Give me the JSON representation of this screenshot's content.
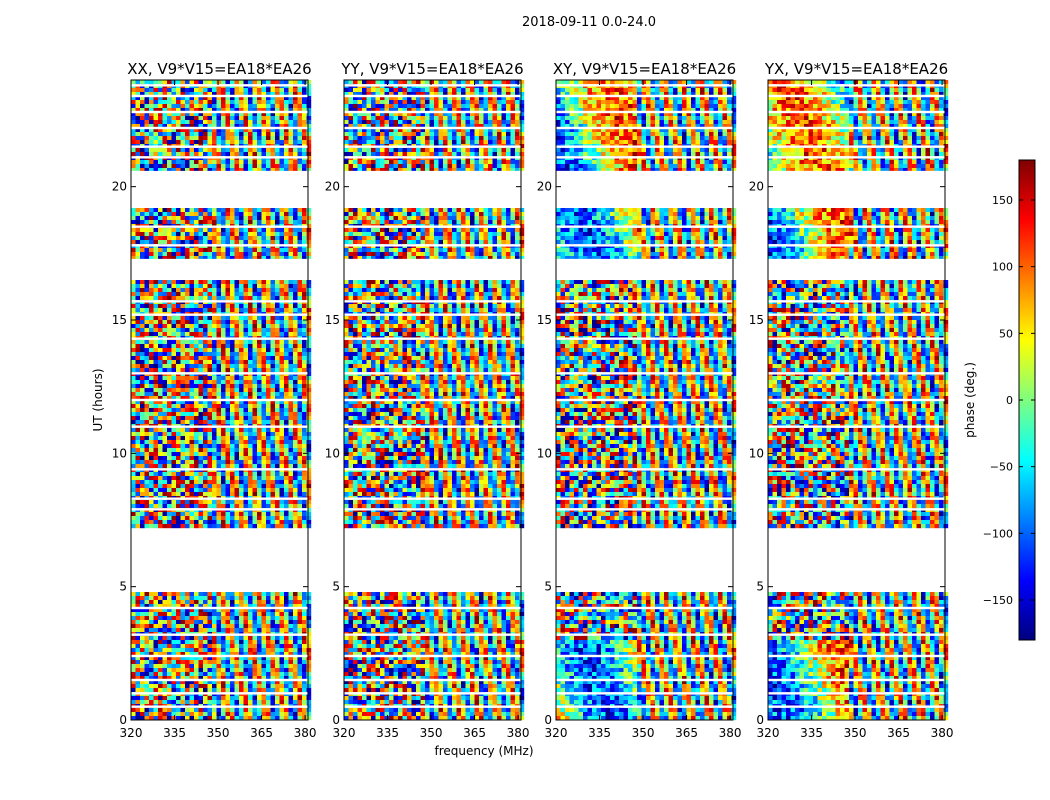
{
  "figure": {
    "suptitle": "2018-09-11 0.0-24.0",
    "xlabel": "frequency (MHz)",
    "ylabel": "UT (hours)"
  },
  "colorbar": {
    "label": "phase (deg.)",
    "min": -180,
    "max": 180,
    "ticks": [
      -150,
      -100,
      -50,
      0,
      50,
      100,
      150
    ],
    "tick_labels": [
      "−150",
      "−100",
      "−50",
      "0",
      "50",
      "100",
      "150"
    ],
    "colormap": [
      "#00007f",
      "#0000ff",
      "#007fff",
      "#00ffff",
      "#7fff7f",
      "#ffff00",
      "#ff7f00",
      "#ff0000",
      "#7f0000"
    ]
  },
  "chart_data": [
    {
      "type": "heatmap",
      "title": "XX, V9*V15=EA18*EA26",
      "xlim": [
        320,
        381
      ],
      "ylim": [
        0,
        24
      ],
      "x_ticks": [
        320,
        335,
        350,
        365,
        380
      ],
      "y_ticks": [
        0,
        5,
        10,
        15,
        20
      ],
      "xlabel": "",
      "ylabel": "UT (hours)",
      "value": "phase (deg.)"
    },
    {
      "type": "heatmap",
      "title": "YY, V9*V15=EA18*EA26",
      "xlim": [
        320,
        381
      ],
      "ylim": [
        0,
        24
      ],
      "x_ticks": [
        320,
        335,
        350,
        365,
        380
      ],
      "y_ticks": [
        0,
        5,
        10,
        15,
        20
      ],
      "xlabel": "frequency (MHz)",
      "ylabel": "",
      "value": "phase (deg.)"
    },
    {
      "type": "heatmap",
      "title": "XY, V9*V15=EA18*EA26",
      "xlim": [
        320,
        381
      ],
      "ylim": [
        0,
        24
      ],
      "x_ticks": [
        320,
        335,
        350,
        365,
        380
      ],
      "y_ticks": [
        0,
        5,
        10,
        15,
        20
      ],
      "xlabel": "",
      "ylabel": "",
      "value": "phase (deg.)"
    },
    {
      "type": "heatmap",
      "title": "YX, V9*V15=EA18*EA26",
      "xlim": [
        320,
        381
      ],
      "ylim": [
        0,
        24
      ],
      "x_ticks": [
        320,
        335,
        350,
        365,
        380
      ],
      "y_ticks": [
        0,
        5,
        10,
        15,
        20
      ],
      "xlabel": "",
      "ylabel": "",
      "value": "phase (deg.)"
    }
  ],
  "data_blocks_hours": [
    [
      0.0,
      4.8
    ],
    [
      7.2,
      16.5
    ],
    [
      17.3,
      19.2
    ],
    [
      20.6,
      24.0
    ]
  ],
  "gap_lines_hours": [
    0.5,
    1.0,
    1.5,
    2.4,
    3.2,
    4.2,
    5.0,
    7.9,
    8.3,
    9.4,
    11.0,
    12.0,
    13.0,
    14.3,
    15.2,
    15.7,
    17.8,
    18.5,
    21.1,
    21.5,
    22.2,
    22.8,
    23.4,
    23.8
  ]
}
